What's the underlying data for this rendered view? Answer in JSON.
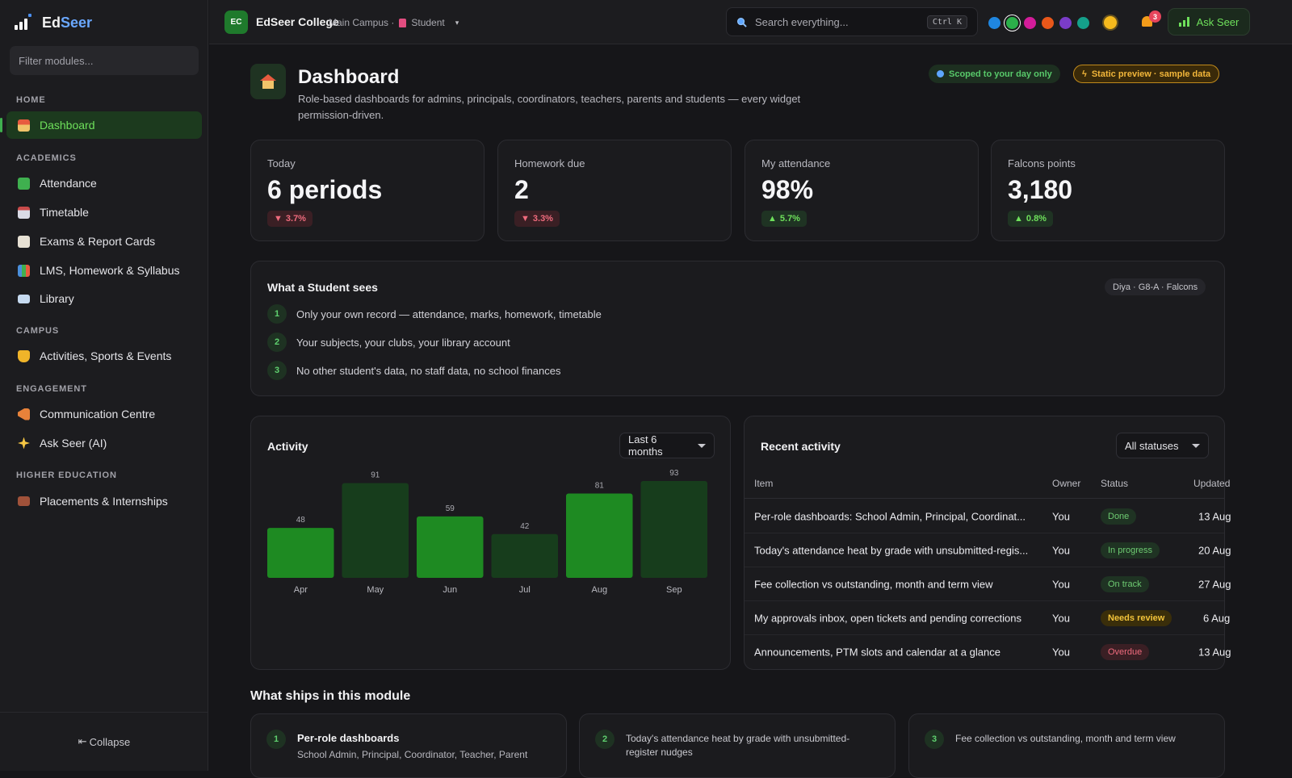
{
  "app": {
    "brand_prefix": "Ed",
    "brand_suffix": "Seer",
    "filter_placeholder": "Filter modules...",
    "collapse_label": "Collapse"
  },
  "sidebar": {
    "sections": {
      "home": "HOME",
      "academics": "ACADEMICS",
      "campus": "CAMPUS",
      "engagement": "ENGAGEMENT",
      "higher": "HIGHER EDUCATION"
    },
    "items": {
      "dashboard": {
        "label": "Dashboard",
        "icon": "house-icon",
        "color": "#e75b3f"
      },
      "attendance": {
        "label": "Attendance",
        "icon": "checkbox-icon",
        "color": "#3fb04f"
      },
      "timetable": {
        "label": "Timetable",
        "icon": "calendar-icon",
        "color": "#7c86c8"
      },
      "exams": {
        "label": "Exams & Report Cards",
        "icon": "memo-icon",
        "color": "#d9d0c0"
      },
      "lms": {
        "label": "LMS, Homework & Syllabus",
        "icon": "books-icon",
        "color": "#4a8fdc"
      },
      "library": {
        "label": "Library",
        "icon": "open-book-icon",
        "color": "#9fc2e8"
      },
      "activities": {
        "label": "Activities, Sports & Events",
        "icon": "trophy-icon",
        "color": "#f0b429"
      },
      "communication": {
        "label": "Communication Centre",
        "icon": "megaphone-icon",
        "color": "#e8823a"
      },
      "askseer": {
        "label": "Ask Seer (AI)",
        "icon": "sparkles-icon",
        "color": "#f6c744"
      },
      "placements": {
        "label": "Placements & Internships",
        "icon": "briefcase-icon",
        "color": "#a0523a"
      }
    }
  },
  "topbar": {
    "org_initials": "EC",
    "org_name": "EdSeer College",
    "campus": "Main Campus ·",
    "role": "Student",
    "search_placeholder": "Search everything...",
    "shortcut": "Ctrl K",
    "notification_count": "3",
    "ask_label": "Ask Seer",
    "theme_colors": [
      "#1f86e0",
      "#2bb04a",
      "#d31c9a",
      "#e8571a",
      "#7a3cc8",
      "#14a08a"
    ]
  },
  "header": {
    "title": "Dashboard",
    "subtitle": "Role-based dashboards for admins, principals, coordinators, teachers, parents and students — every widget permission-driven.",
    "scope_pill": "Scoped to your day only",
    "static_pill": "Static preview · sample data"
  },
  "stats": [
    {
      "label": "Today",
      "value": "6 periods",
      "delta": "3.7%",
      "direction": "down"
    },
    {
      "label": "Homework due",
      "value": "2",
      "delta": "3.3%",
      "direction": "down"
    },
    {
      "label": "My attendance",
      "value": "98%",
      "delta": "5.7%",
      "direction": "up"
    },
    {
      "label": "Falcons points",
      "value": "3,180",
      "delta": "0.8%",
      "direction": "up"
    }
  ],
  "sees": {
    "title": "What a Student sees",
    "tag": "Diya · G8-A · Falcons",
    "items": [
      {
        "n": "1",
        "text": "Only your own record — attendance, marks, homework, timetable"
      },
      {
        "n": "2",
        "text": "Your subjects, your clubs, your library account"
      },
      {
        "n": "3",
        "text": "No other student's data, no staff data, no school finances"
      }
    ]
  },
  "activity": {
    "title": "Activity",
    "range_label": "Last 6 months"
  },
  "chart_data": {
    "type": "bar",
    "categories": [
      "Apr",
      "May",
      "Jun",
      "Jul",
      "Aug",
      "Sep"
    ],
    "values": [
      48,
      91,
      59,
      42,
      81,
      93
    ],
    "colors": [
      "#1e8a22",
      "#173d1c",
      "#1e8a22",
      "#173d1c",
      "#1e8a22",
      "#173d1c"
    ],
    "title": "Activity",
    "ylim": [
      0,
      93
    ],
    "grid": false,
    "data_labels": true
  },
  "recent": {
    "title": "Recent activity",
    "filter_label": "All statuses",
    "columns": {
      "item": "Item",
      "owner": "Owner",
      "status": "Status",
      "updated": "Updated"
    },
    "rows": [
      {
        "item": "Per-role dashboards: School Admin, Principal, Coordinat...",
        "owner": "You",
        "status": "Done",
        "updated": "13 Aug"
      },
      {
        "item": "Today's attendance heat by grade with unsubmitted-regis...",
        "owner": "You",
        "status": "In progress",
        "updated": "20 Aug"
      },
      {
        "item": "Fee collection vs outstanding, month and term view",
        "owner": "You",
        "status": "On track",
        "updated": "27 Aug"
      },
      {
        "item": "My approvals inbox, open tickets and pending corrections",
        "owner": "You",
        "status": "Needs review",
        "updated": "6 Aug"
      },
      {
        "item": "Announcements, PTM slots and calendar at a glance",
        "owner": "You",
        "status": "Overdue",
        "updated": "13 Aug"
      }
    ]
  },
  "ships": {
    "title": "What ships in this module",
    "cards": [
      {
        "n": "1",
        "title": "Per-role dashboards",
        "text": "School Admin, Principal, Coordinator, Teacher, Parent"
      },
      {
        "n": "2",
        "text": "Today's attendance heat by grade with unsubmitted-register nudges"
      },
      {
        "n": "3",
        "text": "Fee collection vs outstanding, month and term view"
      }
    ]
  }
}
